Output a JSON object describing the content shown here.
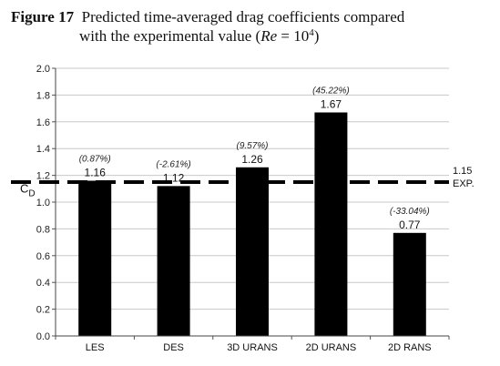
{
  "caption": {
    "figure_label": "Figure 17",
    "text_line1": "Predicted time-averaged drag coefficients compared",
    "text_line2_prefix": "with the experimental value (",
    "re_symbol": "Re",
    "re_equals": " = 10",
    "re_exponent": "4",
    "text_line2_suffix": ")"
  },
  "chart_data": {
    "type": "bar",
    "title": "Predicted time-averaged drag coefficients compared with the experimental value (Re = 10^4)",
    "ylabel_main": "C",
    "ylabel_sub": "D",
    "ylim": [
      0,
      2.0
    ],
    "yticks": [
      "0.0",
      "0.2",
      "0.4",
      "0.6",
      "0.8",
      "1.0",
      "1.2",
      "1.4",
      "1.6",
      "1.8",
      "2.0"
    ],
    "ytick_values": [
      0,
      0.2,
      0.4,
      0.6,
      0.8,
      1.0,
      1.2,
      1.4,
      1.6,
      1.8,
      2.0
    ],
    "grid": true,
    "categories": [
      "LES",
      "DES",
      "3D URANS",
      "2D URANS",
      "2D RANS"
    ],
    "values": [
      1.16,
      1.12,
      1.26,
      1.67,
      0.77
    ],
    "value_labels": [
      "1.16",
      "1.12",
      "1.26",
      "1.67",
      "0.77"
    ],
    "percent_labels": [
      "(0.87%)",
      "(-2.61%)",
      "(9.57%)",
      "(45.22%)",
      "(-33.04%)"
    ],
    "reference": {
      "value": 1.15,
      "value_label": "1.15",
      "label": "EXP."
    },
    "bar_color": "#000000"
  }
}
